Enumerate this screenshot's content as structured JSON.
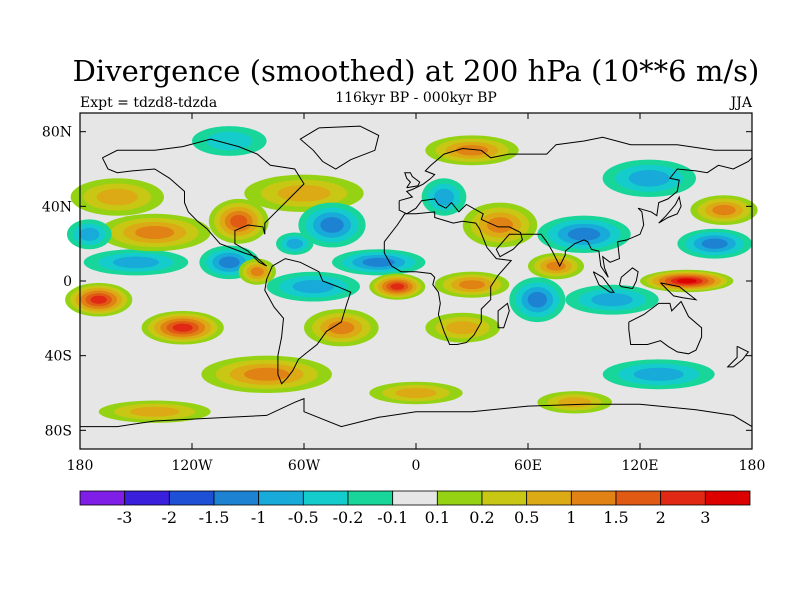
{
  "chart_data": {
    "type": "heatmap",
    "title": "Divergence (smoothed) at 200 hPa (10**6 m/s)",
    "left_label": "Expt = tdzd8-tdzda",
    "center_label": "116kyr BP - 000kyr BP",
    "right_label": "JJA",
    "x_range": [
      -180,
      180
    ],
    "y_range": [
      -90,
      90
    ],
    "x_ticks": [
      {
        "value": -180,
        "label": "180"
      },
      {
        "value": -120,
        "label": "120W"
      },
      {
        "value": -60,
        "label": "60W"
      },
      {
        "value": 0,
        "label": "0"
      },
      {
        "value": 60,
        "label": "60E"
      },
      {
        "value": 120,
        "label": "120E"
      },
      {
        "value": 180,
        "label": "180"
      }
    ],
    "y_ticks": [
      {
        "value": 80,
        "label": "80N"
      },
      {
        "value": 40,
        "label": "40N"
      },
      {
        "value": 0,
        "label": "0"
      },
      {
        "value": -40,
        "label": "40S"
      },
      {
        "value": -80,
        "label": "80S"
      }
    ],
    "levels": [
      "-3",
      "-2",
      "-1.5",
      "-1",
      "-0.5",
      "-0.2",
      "-0.1",
      "0.1",
      "0.2",
      "0.5",
      "1",
      "1.5",
      "2",
      "3"
    ],
    "colors": [
      "#7f1ee6",
      "#3a20dc",
      "#1e50d6",
      "#1e82d2",
      "#18aad8",
      "#14cccc",
      "#18d69a",
      "#e6e6e6",
      "#96d214",
      "#c8c814",
      "#dcaa14",
      "#e08214",
      "#e05a14",
      "#e02814",
      "#dc0000"
    ],
    "features": [
      {
        "lon": -170,
        "lat": -10,
        "value": 2.6,
        "rx": 18,
        "ry": 9
      },
      {
        "lon": -125,
        "lat": -25,
        "value": 2.4,
        "rx": 22,
        "ry": 9
      },
      {
        "lon": -150,
        "lat": 10,
        "value": -1.0,
        "rx": 28,
        "ry": 7
      },
      {
        "lon": -140,
        "lat": 26,
        "value": 1.0,
        "rx": 30,
        "ry": 10
      },
      {
        "lon": -160,
        "lat": 45,
        "value": 0.8,
        "rx": 25,
        "ry": 10
      },
      {
        "lon": -175,
        "lat": 25,
        "value": -1.0,
        "rx": 12,
        "ry": 8
      },
      {
        "lon": -95,
        "lat": 32,
        "value": 1.6,
        "rx": 16,
        "ry": 12
      },
      {
        "lon": -100,
        "lat": 10,
        "value": -1.5,
        "rx": 16,
        "ry": 9
      },
      {
        "lon": -85,
        "lat": 5,
        "value": 1.2,
        "rx": 10,
        "ry": 7
      },
      {
        "lon": -60,
        "lat": 47,
        "value": 0.8,
        "rx": 32,
        "ry": 10
      },
      {
        "lon": -45,
        "lat": 30,
        "value": -1.2,
        "rx": 18,
        "ry": 12
      },
      {
        "lon": -65,
        "lat": 20,
        "value": -0.6,
        "rx": 10,
        "ry": 6
      },
      {
        "lon": -55,
        "lat": -3,
        "value": -1.0,
        "rx": 25,
        "ry": 8
      },
      {
        "lon": -20,
        "lat": 10,
        "value": -1.2,
        "rx": 25,
        "ry": 7
      },
      {
        "lon": -10,
        "lat": -3,
        "value": 2.6,
        "rx": 15,
        "ry": 7
      },
      {
        "lon": 30,
        "lat": -2,
        "value": 1.2,
        "rx": 20,
        "ry": 7
      },
      {
        "lon": -80,
        "lat": -50,
        "value": 1.0,
        "rx": 35,
        "ry": 10
      },
      {
        "lon": -40,
        "lat": -25,
        "value": 1.2,
        "rx": 20,
        "ry": 10
      },
      {
        "lon": 25,
        "lat": -25,
        "value": 0.8,
        "rx": 20,
        "ry": 8
      },
      {
        "lon": 15,
        "lat": 45,
        "value": -1.0,
        "rx": 12,
        "ry": 10
      },
      {
        "lon": 45,
        "lat": 30,
        "value": 1.0,
        "rx": 20,
        "ry": 12
      },
      {
        "lon": 90,
        "lat": 25,
        "value": -1.2,
        "rx": 25,
        "ry": 10
      },
      {
        "lon": 75,
        "lat": 8,
        "value": 1.2,
        "rx": 15,
        "ry": 7
      },
      {
        "lon": 65,
        "lat": -10,
        "value": -1.5,
        "rx": 15,
        "ry": 12
      },
      {
        "lon": 105,
        "lat": -10,
        "value": -0.8,
        "rx": 25,
        "ry": 8
      },
      {
        "lon": 145,
        "lat": 0,
        "value": 3.0,
        "rx": 25,
        "ry": 6
      },
      {
        "lon": 160,
        "lat": 20,
        "value": -1.5,
        "rx": 20,
        "ry": 8
      },
      {
        "lon": 165,
        "lat": 38,
        "value": 1.4,
        "rx": 18,
        "ry": 8
      },
      {
        "lon": 125,
        "lat": 55,
        "value": -0.8,
        "rx": 25,
        "ry": 10
      },
      {
        "lon": 130,
        "lat": -50,
        "value": -0.8,
        "rx": 30,
        "ry": 8
      },
      {
        "lon": 85,
        "lat": -65,
        "value": 0.6,
        "rx": 20,
        "ry": 6
      },
      {
        "lon": -100,
        "lat": 75,
        "value": -0.5,
        "rx": 20,
        "ry": 8
      },
      {
        "lon": 30,
        "lat": 70,
        "value": 1.0,
        "rx": 25,
        "ry": 8
      },
      {
        "lon": -140,
        "lat": -70,
        "value": 0.8,
        "rx": 30,
        "ry": 6
      },
      {
        "lon": 0,
        "lat": -60,
        "value": 0.7,
        "rx": 25,
        "ry": 6
      }
    ]
  }
}
